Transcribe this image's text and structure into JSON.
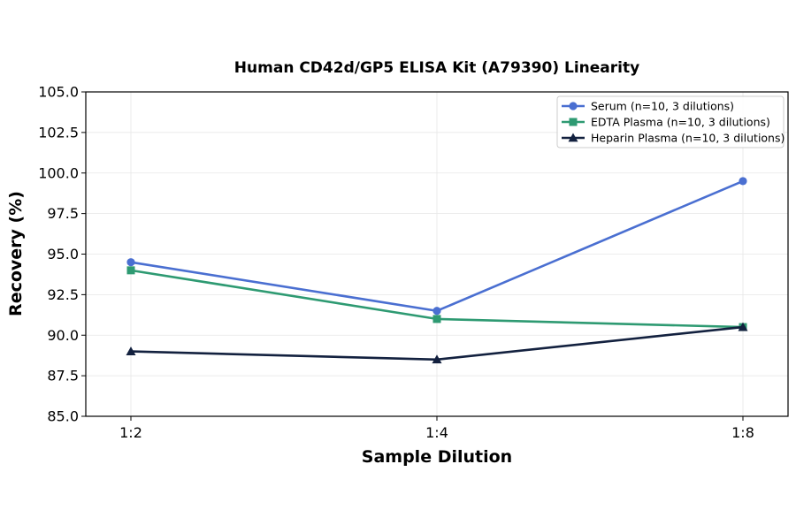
{
  "chart_data": {
    "type": "line",
    "title": "Human CD42d/GP5 ELISA Kit (A79390) Linearity",
    "xlabel": "Sample Dilution",
    "ylabel": "Recovery (%)",
    "categories": [
      "1:2",
      "1:4",
      "1:8"
    ],
    "ylim": [
      85.0,
      105.0
    ],
    "yticks": [
      "85.0",
      "87.5",
      "90.0",
      "92.5",
      "95.0",
      "97.5",
      "100.0",
      "102.5",
      "105.0"
    ],
    "grid": true,
    "legend_position": "top-right",
    "series": [
      {
        "name": "Serum (n=10, 3 dilutions)",
        "values": [
          94.5,
          91.5,
          99.5
        ],
        "color": "#4a6fd1",
        "marker": "circle"
      },
      {
        "name": "EDTA Plasma (n=10, 3 dilutions)",
        "values": [
          94.0,
          91.0,
          90.5
        ],
        "color": "#2e9a72",
        "marker": "square"
      },
      {
        "name": "Heparin Plasma (n=10, 3 dilutions)",
        "values": [
          89.0,
          88.5,
          90.5
        ],
        "color": "#13213f",
        "marker": "triangle"
      }
    ]
  }
}
